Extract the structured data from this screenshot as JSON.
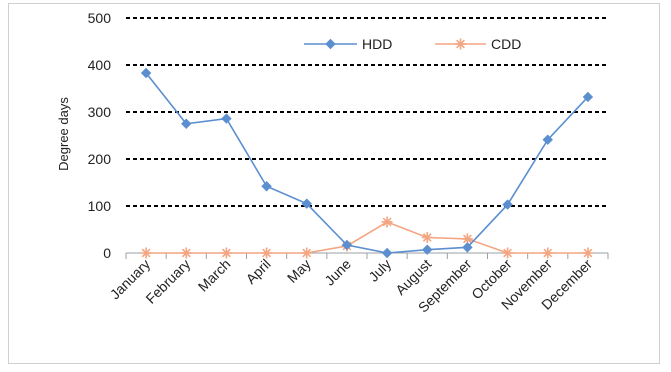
{
  "chart_data": {
    "type": "line",
    "title": "",
    "xlabel": "",
    "ylabel": "Degree days",
    "ylim": [
      0,
      500
    ],
    "yticks": [
      0,
      100,
      200,
      300,
      400,
      500
    ],
    "categories": [
      "January",
      "February",
      "March",
      "April",
      "May",
      "June",
      "July",
      "August",
      "September",
      "October",
      "November",
      "December"
    ],
    "series": [
      {
        "name": "HDD",
        "color": "#5b8fd0",
        "marker": "diamond",
        "values": [
          383,
          275,
          286,
          142,
          105,
          17,
          0,
          7,
          12,
          103,
          241,
          332
        ]
      },
      {
        "name": "CDD",
        "color": "#f4a582",
        "marker": "star",
        "values": [
          0,
          0,
          0,
          0,
          0,
          15,
          66,
          33,
          30,
          0,
          0,
          0
        ]
      }
    ],
    "grid": "horizontal dashed",
    "legend_position": "top-center"
  }
}
